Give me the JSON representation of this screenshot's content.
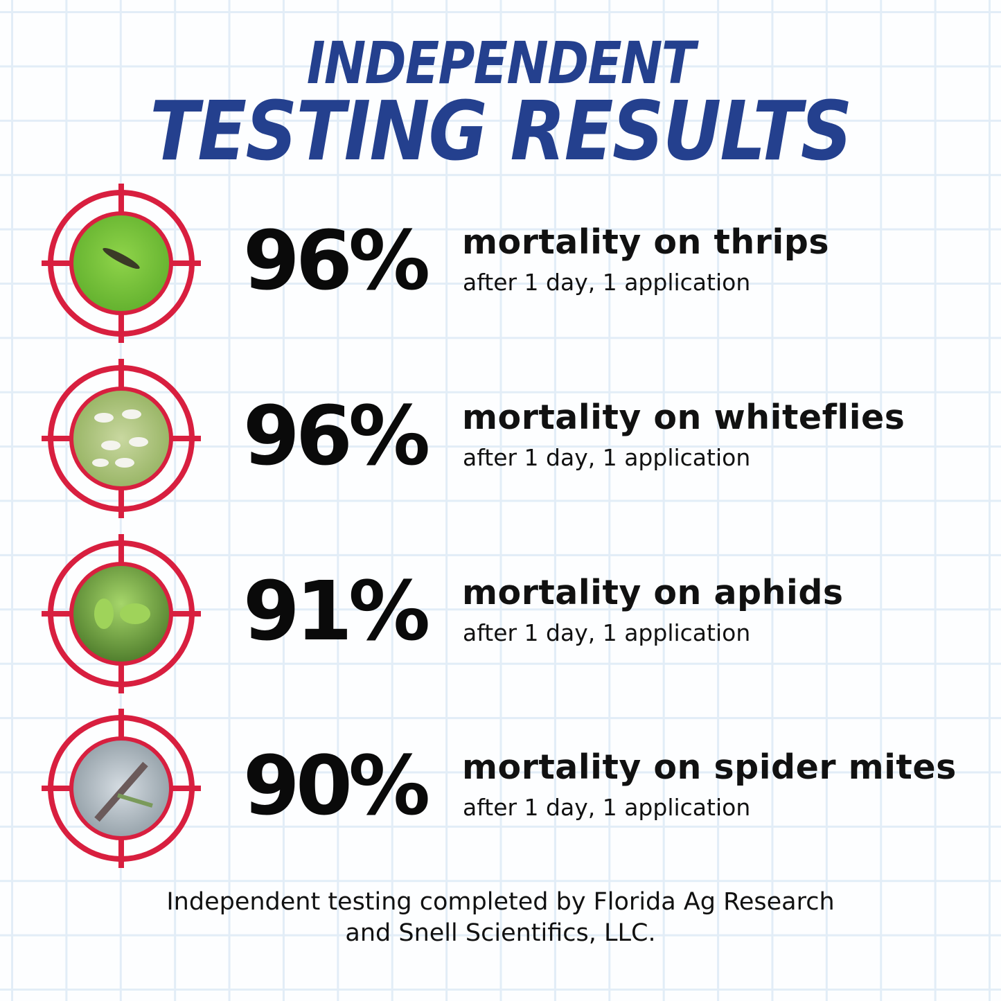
{
  "title": {
    "line1": "INDEPENDENT",
    "line2": "TESTING RESULTS",
    "color": "#24408e"
  },
  "target_color": "#d81f3f",
  "results": [
    {
      "percent": "96%",
      "label": "mortality on thrips",
      "detail": "after 1 day, 1 application",
      "photo": "thrips-on-leaf"
    },
    {
      "percent": "96%",
      "label": "mortality on whiteflies",
      "detail": "after 1 day, 1 application",
      "photo": "whiteflies"
    },
    {
      "percent": "91%",
      "label": "mortality on aphids",
      "detail": "after 1 day, 1 application",
      "photo": "aphids"
    },
    {
      "percent": "90%",
      "label": "mortality on spider mites",
      "detail": "after 1 day, 1 application",
      "photo": "spider-mites"
    }
  ],
  "footer": {
    "line1": "Independent testing completed by Florida Ag Research",
    "line2": "and Snell Scientifics, LLC."
  }
}
